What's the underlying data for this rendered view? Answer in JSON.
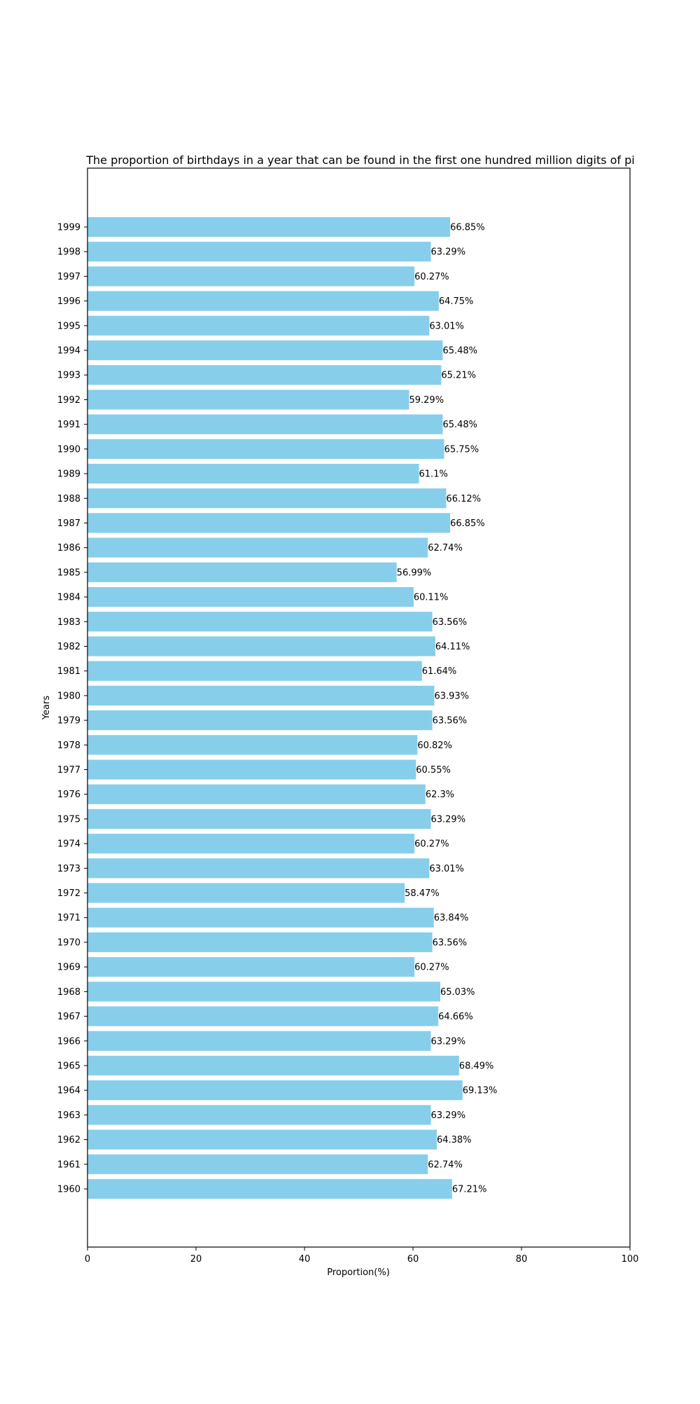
{
  "chart_data": {
    "type": "bar",
    "orientation": "horizontal",
    "title": "The proportion of birthdays in a year that can be found in the first one hundred million digits of pi",
    "xlabel": "Proportion(%)",
    "ylabel": "Years",
    "xlim": [
      0,
      100
    ],
    "xticks": [
      0,
      20,
      40,
      60,
      80,
      100
    ],
    "grid": false,
    "bar_color": "#87ceeb",
    "label_suffix": "%",
    "categories": [
      "1960",
      "1961",
      "1962",
      "1963",
      "1964",
      "1965",
      "1966",
      "1967",
      "1968",
      "1969",
      "1970",
      "1971",
      "1972",
      "1973",
      "1974",
      "1975",
      "1976",
      "1977",
      "1978",
      "1979",
      "1980",
      "1981",
      "1982",
      "1983",
      "1984",
      "1985",
      "1986",
      "1987",
      "1988",
      "1989",
      "1990",
      "1991",
      "1992",
      "1993",
      "1994",
      "1995",
      "1996",
      "1997",
      "1998",
      "1999"
    ],
    "values": [
      67.21,
      62.74,
      64.38,
      63.29,
      69.13,
      68.49,
      63.29,
      64.66,
      65.03,
      60.27,
      63.56,
      63.84,
      58.47,
      63.01,
      60.27,
      63.29,
      62.3,
      60.55,
      60.82,
      63.56,
      63.93,
      61.64,
      64.11,
      63.56,
      60.11,
      56.99,
      62.74,
      66.85,
      66.12,
      61.1,
      65.75,
      65.48,
      59.29,
      65.21,
      65.48,
      63.01,
      64.75,
      60.27,
      63.29,
      66.85
    ]
  }
}
